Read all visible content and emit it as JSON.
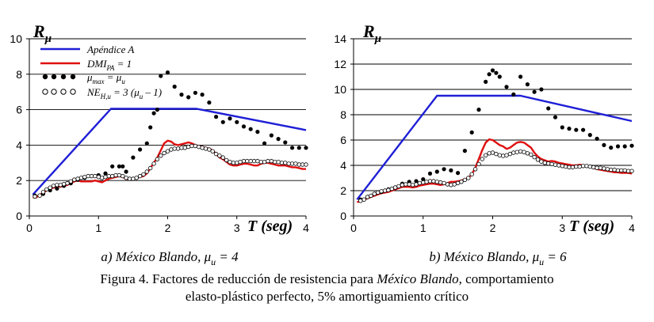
{
  "chart_data": [
    {
      "type": "line",
      "y_title": "R",
      "y_title_sub": "μ",
      "x_title": "T (seg)",
      "subcaption_prefix": "a) México Blando, ",
      "subcaption_mu": "μ",
      "subcaption_mu_sub": "u",
      "subcaption_value": " = 4",
      "xlim": [
        0,
        4
      ],
      "ylim": [
        0,
        10
      ],
      "x_ticks": [
        "0",
        "1",
        "2",
        "3",
        "4"
      ],
      "y_ticks": [
        "0",
        "2",
        "4",
        "6",
        "8",
        "10"
      ],
      "legend": [
        {
          "label": "Apéndice A"
        },
        {
          "label": "DMI",
          "sub": "PA",
          "suffix": " = 1"
        },
        {
          "label": "μ",
          "sub": "max",
          "suffix": " = μ",
          "sub2": "u"
        },
        {
          "label": "NE",
          "sub": "H,u",
          "suffix": " = 3 (μ",
          "sub2": "u",
          "suffix2": " – 1)"
        }
      ],
      "series": [
        {
          "name": "Apéndice A",
          "color": "#1f1fd6",
          "style": "line",
          "x": [
            0.05,
            1.18,
            2.42,
            4.0
          ],
          "y": [
            1.2,
            6.05,
            6.05,
            4.85
          ]
        },
        {
          "name": "DMI_PA = 1",
          "color": "#e01010",
          "style": "line",
          "x": [
            0.05,
            0.1,
            0.15,
            0.2,
            0.25,
            0.3,
            0.35,
            0.4,
            0.45,
            0.5,
            0.55,
            0.6,
            0.65,
            0.7,
            0.75,
            0.8,
            0.85,
            0.9,
            0.95,
            1.0,
            1.05,
            1.1,
            1.15,
            1.2,
            1.25,
            1.3,
            1.35,
            1.4,
            1.45,
            1.5,
            1.55,
            1.6,
            1.65,
            1.7,
            1.75,
            1.8,
            1.85,
            1.9,
            1.95,
            2.0,
            2.05,
            2.1,
            2.15,
            2.2,
            2.25,
            2.3,
            2.35,
            2.4,
            2.45,
            2.5,
            2.55,
            2.6,
            2.65,
            2.7,
            2.75,
            2.8,
            2.85,
            2.9,
            2.95,
            3.0,
            3.05,
            3.1,
            3.15,
            3.2,
            3.25,
            3.3,
            3.35,
            3.4,
            3.45,
            3.5,
            3.55,
            3.6,
            3.65,
            3.7,
            3.75,
            3.8,
            3.85,
            3.9,
            3.95,
            4.0
          ],
          "y": [
            1.05,
            1.05,
            1.2,
            1.3,
            1.45,
            1.55,
            1.6,
            1.65,
            1.65,
            1.7,
            1.75,
            1.85,
            1.95,
            2.0,
            1.95,
            1.95,
            1.95,
            1.95,
            2.0,
            1.95,
            1.9,
            2.0,
            2.1,
            2.15,
            2.2,
            2.25,
            2.2,
            2.1,
            2.05,
            2.1,
            2.15,
            2.2,
            2.25,
            2.4,
            2.7,
            3.0,
            3.3,
            3.7,
            4.1,
            4.25,
            4.2,
            4.05,
            4.0,
            4.05,
            4.1,
            4.15,
            4.1,
            4.0,
            3.95,
            3.9,
            3.85,
            3.8,
            3.7,
            3.5,
            3.3,
            3.2,
            3.05,
            2.9,
            2.85,
            2.85,
            2.9,
            2.95,
            2.95,
            2.9,
            2.85,
            2.85,
            2.95,
            3.0,
            3.0,
            2.95,
            2.9,
            2.85,
            2.85,
            2.85,
            2.8,
            2.75,
            2.75,
            2.7,
            2.65,
            2.65
          ]
        },
        {
          "name": "μmax = μu",
          "color": "#000000",
          "style": "dots",
          "x": [
            0.08,
            0.2,
            0.3,
            0.4,
            0.5,
            0.6,
            0.7,
            0.8,
            0.9,
            1.0,
            1.1,
            1.2,
            1.3,
            1.35,
            1.4,
            1.5,
            1.6,
            1.7,
            1.75,
            1.8,
            1.85,
            1.9,
            2.0,
            2.1,
            2.2,
            2.3,
            2.4,
            2.5,
            2.6,
            2.7,
            2.8,
            2.9,
            3.0,
            3.1,
            3.2,
            3.3,
            3.4,
            3.5,
            3.6,
            3.7,
            3.8,
            3.9,
            4.0
          ],
          "y": [
            1.15,
            1.25,
            1.45,
            1.55,
            1.7,
            1.85,
            2.05,
            2.15,
            2.25,
            2.3,
            2.4,
            2.8,
            2.8,
            2.8,
            2.5,
            3.3,
            3.75,
            4.1,
            5.0,
            5.8,
            6.0,
            7.9,
            8.1,
            7.3,
            6.85,
            6.7,
            6.95,
            6.85,
            6.4,
            5.6,
            5.3,
            5.5,
            5.3,
            5.05,
            4.9,
            4.75,
            4.1,
            4.55,
            4.35,
            4.15,
            3.85,
            3.85,
            3.85
          ]
        },
        {
          "name": "NE_H,u = 3(μu − 1)",
          "color": "#000000",
          "style": "open",
          "x": [
            0.08,
            0.15,
            0.2,
            0.25,
            0.3,
            0.35,
            0.4,
            0.45,
            0.5,
            0.55,
            0.6,
            0.65,
            0.7,
            0.75,
            0.8,
            0.85,
            0.9,
            0.95,
            1.0,
            1.05,
            1.1,
            1.15,
            1.2,
            1.25,
            1.3,
            1.35,
            1.4,
            1.45,
            1.5,
            1.55,
            1.6,
            1.65,
            1.7,
            1.75,
            1.8,
            1.85,
            1.9,
            1.95,
            2.0,
            2.05,
            2.1,
            2.15,
            2.2,
            2.25,
            2.3,
            2.35,
            2.4,
            2.45,
            2.5,
            2.55,
            2.6,
            2.65,
            2.7,
            2.75,
            2.8,
            2.85,
            2.9,
            2.95,
            3.0,
            3.05,
            3.1,
            3.15,
            3.2,
            3.25,
            3.3,
            3.35,
            3.4,
            3.45,
            3.5,
            3.55,
            3.6,
            3.65,
            3.7,
            3.75,
            3.8,
            3.85,
            3.9,
            3.95,
            4.0
          ],
          "y": [
            1.1,
            1.15,
            1.35,
            1.5,
            1.6,
            1.7,
            1.75,
            1.75,
            1.8,
            1.85,
            1.95,
            2.05,
            2.1,
            2.15,
            2.2,
            2.25,
            2.25,
            2.25,
            2.2,
            2.15,
            2.2,
            2.25,
            2.25,
            2.3,
            2.3,
            2.25,
            2.15,
            2.1,
            2.1,
            2.15,
            2.25,
            2.35,
            2.5,
            2.7,
            2.95,
            3.2,
            3.4,
            3.55,
            3.65,
            3.75,
            3.8,
            3.8,
            3.85,
            3.85,
            3.9,
            3.95,
            3.95,
            3.9,
            3.85,
            3.8,
            3.75,
            3.65,
            3.5,
            3.4,
            3.3,
            3.15,
            3.05,
            3.0,
            3.0,
            3.05,
            3.1,
            3.1,
            3.1,
            3.1,
            3.1,
            3.05,
            3.05,
            3.1,
            3.1,
            3.05,
            3.05,
            3.0,
            3.0,
            2.95,
            2.95,
            2.95,
            2.9,
            2.9,
            2.9
          ]
        }
      ]
    },
    {
      "type": "line",
      "y_title": "R",
      "y_title_sub": "μ",
      "x_title": "T (seg)",
      "subcaption_prefix": "b) México Blando, ",
      "subcaption_mu": "μ",
      "subcaption_mu_sub": "u",
      "subcaption_value": " = 6",
      "xlim": [
        0,
        4
      ],
      "ylim": [
        0,
        14
      ],
      "x_ticks": [
        "0",
        "1",
        "2",
        "3",
        "4"
      ],
      "y_ticks": [
        "0",
        "2",
        "4",
        "6",
        "8",
        "10",
        "12",
        "14"
      ],
      "series": [
        {
          "name": "Apéndice A",
          "color": "#1f1fd6",
          "style": "line",
          "x": [
            0.05,
            1.2,
            2.4,
            4.0
          ],
          "y": [
            1.3,
            9.5,
            9.5,
            7.5
          ]
        },
        {
          "name": "DMI_PA = 1",
          "color": "#e01010",
          "style": "line",
          "x": [
            0.05,
            0.1,
            0.15,
            0.2,
            0.25,
            0.3,
            0.35,
            0.4,
            0.45,
            0.5,
            0.55,
            0.6,
            0.65,
            0.7,
            0.75,
            0.8,
            0.85,
            0.9,
            0.95,
            1.0,
            1.05,
            1.1,
            1.15,
            1.2,
            1.25,
            1.3,
            1.35,
            1.4,
            1.45,
            1.5,
            1.55,
            1.6,
            1.65,
            1.7,
            1.75,
            1.8,
            1.85,
            1.9,
            1.95,
            2.0,
            2.05,
            2.1,
            2.15,
            2.2,
            2.25,
            2.3,
            2.35,
            2.4,
            2.45,
            2.5,
            2.55,
            2.6,
            2.65,
            2.7,
            2.75,
            2.8,
            2.85,
            2.9,
            2.95,
            3.0,
            3.05,
            3.1,
            3.15,
            3.2,
            3.25,
            3.3,
            3.35,
            3.4,
            3.45,
            3.5,
            3.55,
            3.6,
            3.65,
            3.7,
            3.75,
            3.8,
            3.85,
            3.9,
            3.95,
            4.0
          ],
          "y": [
            1.1,
            1.15,
            1.3,
            1.4,
            1.5,
            1.6,
            1.7,
            1.8,
            1.85,
            1.9,
            2.0,
            2.1,
            2.2,
            2.3,
            2.3,
            2.3,
            2.25,
            2.3,
            2.4,
            2.45,
            2.5,
            2.55,
            2.55,
            2.5,
            2.45,
            2.5,
            2.6,
            2.7,
            2.7,
            2.75,
            2.8,
            2.9,
            3.0,
            3.3,
            3.8,
            4.5,
            5.2,
            5.8,
            6.05,
            6.0,
            5.8,
            5.6,
            5.5,
            5.3,
            5.4,
            5.6,
            5.8,
            5.85,
            5.8,
            5.6,
            5.4,
            5.0,
            4.7,
            4.5,
            4.4,
            4.3,
            4.35,
            4.3,
            4.2,
            4.15,
            4.1,
            4.05,
            4.0,
            4.0,
            4.05,
            4.0,
            3.95,
            3.9,
            3.8,
            3.7,
            3.65,
            3.6,
            3.55,
            3.5,
            3.45,
            3.45,
            3.4,
            3.4,
            3.4,
            3.35
          ]
        },
        {
          "name": "μmax = μu",
          "color": "#000000",
          "style": "dots",
          "x": [
            0.1,
            0.2,
            0.3,
            0.4,
            0.5,
            0.6,
            0.7,
            0.8,
            0.9,
            1.0,
            1.1,
            1.2,
            1.3,
            1.4,
            1.5,
            1.6,
            1.7,
            1.8,
            1.9,
            1.95,
            2.0,
            2.05,
            2.1,
            2.2,
            2.3,
            2.4,
            2.5,
            2.6,
            2.7,
            2.8,
            2.9,
            3.0,
            3.1,
            3.2,
            3.3,
            3.4,
            3.5,
            3.6,
            3.7,
            3.8,
            3.9,
            4.0
          ],
          "y": [
            1.3,
            1.5,
            1.75,
            1.9,
            2.1,
            2.25,
            2.55,
            2.7,
            2.75,
            2.9,
            3.35,
            3.5,
            3.7,
            3.6,
            3.4,
            5.15,
            6.6,
            8.4,
            10.6,
            11.2,
            11.5,
            11.3,
            11.0,
            10.2,
            9.6,
            11.0,
            10.4,
            9.8,
            10.0,
            8.5,
            7.8,
            7.0,
            6.9,
            6.8,
            6.8,
            6.4,
            6.1,
            5.6,
            5.4,
            5.5,
            5.5,
            5.55
          ]
        },
        {
          "name": "NE_H,u = 3(μu − 1)",
          "color": "#000000",
          "style": "open",
          "x": [
            0.1,
            0.15,
            0.2,
            0.25,
            0.3,
            0.35,
            0.4,
            0.45,
            0.5,
            0.55,
            0.6,
            0.65,
            0.7,
            0.75,
            0.8,
            0.85,
            0.9,
            0.95,
            1.0,
            1.05,
            1.1,
            1.15,
            1.2,
            1.25,
            1.3,
            1.35,
            1.4,
            1.45,
            1.5,
            1.55,
            1.6,
            1.65,
            1.7,
            1.75,
            1.8,
            1.85,
            1.9,
            1.95,
            2.0,
            2.05,
            2.1,
            2.15,
            2.2,
            2.25,
            2.3,
            2.35,
            2.4,
            2.45,
            2.5,
            2.55,
            2.6,
            2.65,
            2.7,
            2.75,
            2.8,
            2.85,
            2.9,
            2.95,
            3.0,
            3.05,
            3.1,
            3.15,
            3.2,
            3.25,
            3.3,
            3.35,
            3.4,
            3.45,
            3.5,
            3.55,
            3.6,
            3.65,
            3.7,
            3.75,
            3.8,
            3.85,
            3.9,
            3.95,
            4.0
          ],
          "y": [
            1.2,
            1.3,
            1.5,
            1.6,
            1.75,
            1.85,
            1.95,
            2.0,
            2.05,
            2.15,
            2.25,
            2.35,
            2.45,
            2.5,
            2.5,
            2.45,
            2.5,
            2.6,
            2.65,
            2.7,
            2.75,
            2.75,
            2.7,
            2.65,
            2.6,
            2.5,
            2.45,
            2.5,
            2.6,
            2.7,
            2.85,
            3.0,
            3.3,
            3.7,
            4.1,
            4.5,
            4.8,
            4.95,
            5.0,
            4.9,
            4.8,
            4.75,
            4.8,
            4.9,
            5.0,
            5.05,
            5.1,
            5.05,
            4.95,
            4.85,
            4.65,
            4.45,
            4.3,
            4.2,
            4.15,
            4.1,
            4.05,
            4.0,
            3.95,
            3.9,
            3.85,
            3.85,
            3.9,
            3.9,
            3.95,
            3.95,
            3.9,
            3.85,
            3.8,
            3.8,
            3.75,
            3.7,
            3.65,
            3.65,
            3.6,
            3.6,
            3.6,
            3.55,
            3.55
          ]
        }
      ]
    }
  ],
  "caption": {
    "line1_prefix": "Figura 4.  Factores de reducción de resistencia para ",
    "line1_emph": "México Blando",
    "line1_suffix": ", comportamiento",
    "line2": "elasto-plástico perfecto, 5% amortiguamiento crítico"
  }
}
